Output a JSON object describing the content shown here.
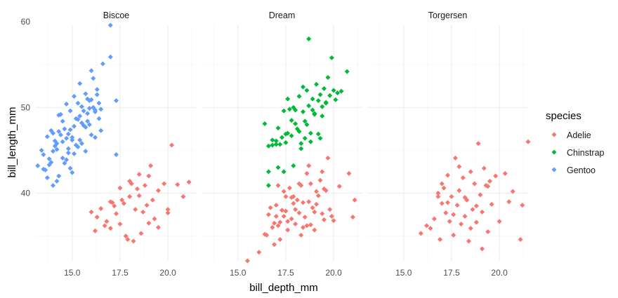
{
  "chart_data": {
    "type": "scatter",
    "xlabel": "bill_depth_mm",
    "ylabel": "bill_length_mm",
    "xlim": [
      13.1,
      21.5
    ],
    "ylim": [
      32.1,
      59.6
    ],
    "x_ticks": [
      15,
      17.5,
      20
    ],
    "x_tick_labels": [
      "15.0",
      "17.5",
      "20.0"
    ],
    "y_ticks": [
      40,
      50,
      60
    ],
    "y_tick_labels": [
      "40",
      "50",
      "60"
    ],
    "grid": true,
    "legend": {
      "title": "species",
      "placement": "right"
    },
    "colors": {
      "Adelie": "#F8766D",
      "Chinstrap": "#00BA38",
      "Gentoo": "#619CFF"
    },
    "facets": [
      {
        "label": "Biscoe",
        "series": [
          {
            "name": "Adelie",
            "x": [
              16.0,
              16.2,
              16.5,
              16.8,
              17.0,
              17.0,
              17.2,
              17.3,
              17.5,
              17.5,
              17.7,
              17.8,
              18.0,
              18.0,
              18.2,
              18.3,
              18.5,
              18.5,
              18.7,
              18.8,
              19.0,
              19.0,
              19.2,
              19.3,
              19.5,
              19.5,
              19.8,
              20.0,
              20.0,
              20.2,
              20.5,
              20.8,
              21.1,
              16.3,
              16.7,
              17.1,
              17.6,
              18.1,
              18.4,
              18.9,
              19.1,
              17.9,
              18.6
            ],
            "y": [
              37.8,
              35.6,
              38.2,
              36.7,
              39.0,
              35.9,
              38.5,
              37.6,
              40.6,
              36.4,
              38.8,
              35.0,
              39.6,
              41.4,
              34.4,
              38.1,
              39.7,
              42.2,
              37.8,
              40.9,
              36.5,
              42.0,
              39.2,
              37.0,
              40.3,
              36.0,
              41.1,
              38.1,
              37.7,
              45.6,
              41.0,
              39.6,
              41.3,
              37.2,
              36.2,
              38.9,
              39.2,
              41.1,
              40.5,
              38.6,
              43.2,
              34.6,
              35.3
            ]
          },
          {
            "name": "Gentoo",
            "x": [
              13.2,
              13.4,
              13.5,
              13.6,
              13.7,
              13.8,
              13.9,
              14.0,
              14.1,
              14.2,
              14.3,
              14.4,
              14.5,
              14.6,
              14.7,
              14.8,
              14.9,
              15.0,
              15.1,
              15.2,
              15.3,
              15.4,
              15.5,
              15.6,
              15.7,
              15.8,
              15.9,
              16.0,
              16.1,
              16.2,
              16.3,
              16.4,
              16.5,
              16.6,
              17.0,
              17.0,
              17.3,
              17.3,
              13.5,
              13.7,
              13.9,
              14.1,
              14.3,
              14.5,
              14.7,
              14.9,
              15.1,
              15.3,
              15.5,
              15.7,
              15.9,
              16.1,
              16.3,
              16.5,
              13.8,
              14.0,
              14.2,
              14.4,
              14.6,
              14.8,
              15.0,
              15.2,
              15.4,
              15.6,
              15.8,
              16.0,
              16.2,
              16.4,
              14.3,
              14.5,
              14.7,
              14.9,
              15.1,
              15.3,
              15.5,
              15.7,
              15.9,
              14.0,
              14.2,
              14.8,
              15.0,
              15.4,
              15.8,
              16.0,
              16.2
            ],
            "y": [
              43.2,
              45.0,
              44.5,
              42.7,
              46.6,
              43.3,
              47.3,
              44.9,
              46.1,
              45.8,
              49.1,
              46.8,
              48.4,
              47.5,
              50.4,
              45.2,
              49.6,
              46.5,
              51.3,
              48.7,
              50.5,
              46.2,
              48.2,
              49.6,
              47.7,
              49.3,
              50.8,
              46.8,
              50.0,
              49.5,
              52.1,
              48.7,
              47.3,
              55.1,
              59.6,
              55.9,
              50.8,
              44.5,
              42.8,
              41.8,
              43.6,
              45.5,
              47.2,
              44.1,
              46.4,
              42.9,
              47.8,
              45.4,
              50.1,
              44.9,
              48.0,
              53.4,
              51.5,
              49.8,
              44.0,
              47.0,
              45.1,
              49.2,
              43.5,
              46.9,
              42.4,
              45.6,
              49.0,
              47.9,
              51.0,
              54.3,
              46.5,
              50.5,
              42.0,
              46.0,
              43.9,
              47.4,
              44.6,
              48.6,
              45.8,
              51.6,
              49.9,
              40.9,
              41.4,
              44.7,
              46.2,
              52.8,
              48.4,
              50.9,
              49.7
            ]
          }
        ]
      },
      {
        "label": "Dream",
        "series": [
          {
            "name": "Adelie",
            "x": [
              15.5,
              16.1,
              16.4,
              16.6,
              16.8,
              16.9,
              17.0,
              17.1,
              17.2,
              17.3,
              17.4,
              17.5,
              17.6,
              17.7,
              17.8,
              17.9,
              18.0,
              18.1,
              18.2,
              18.3,
              18.4,
              18.5,
              18.6,
              18.7,
              18.8,
              18.9,
              19.0,
              19.1,
              19.2,
              19.3,
              19.4,
              19.5,
              19.6,
              19.7,
              19.8,
              20.0,
              20.3,
              20.8,
              21.1,
              21.0,
              17.0,
              17.4,
              17.8,
              18.2,
              18.6,
              19.0,
              19.4,
              17.2,
              17.6,
              18.0,
              18.4,
              18.8,
              16.7,
              16.9,
              17.1,
              17.5,
              17.9,
              18.3,
              18.7,
              19.1,
              19.5,
              19.9,
              16.5
            ],
            "y": [
              32.1,
              33.1,
              35.2,
              37.5,
              36.0,
              34.0,
              38.6,
              36.2,
              36.6,
              38.0,
              37.3,
              39.6,
              35.7,
              40.6,
              37.0,
              38.8,
              36.4,
              39.2,
              37.7,
              40.9,
              36.0,
              37.2,
              42.3,
              39.0,
              41.1,
              38.3,
              35.7,
              40.2,
              39.7,
              41.5,
              37.6,
              36.9,
              40.3,
              44.1,
              38.1,
              36.8,
              40.8,
              42.3,
              39.2,
              37.2,
              37.3,
              40.2,
              39.5,
              41.1,
              36.2,
              37.8,
              42.5,
              34.6,
              36.7,
              38.1,
              38.9,
              36.3,
              38.3,
              36.5,
              40.9,
              37.9,
              39.6,
              35.1,
              43.2,
              38.7,
              40.5,
              37.3,
              35.1
            ]
          },
          {
            "name": "Chinstrap",
            "x": [
              16.4,
              16.6,
              16.8,
              17.0,
              17.1,
              17.3,
              17.4,
              17.5,
              17.6,
              17.7,
              17.8,
              17.9,
              18.0,
              18.1,
              18.2,
              18.3,
              18.4,
              18.5,
              18.6,
              18.7,
              18.8,
              18.9,
              19.0,
              19.1,
              19.2,
              19.3,
              19.4,
              19.5,
              19.6,
              19.7,
              19.8,
              19.9,
              20.0,
              20.2,
              20.7,
              18.7,
              16.6,
              17.4,
              17.9,
              18.3,
              18.8,
              19.3,
              19.6,
              20.1,
              16.6,
              17.5,
              17.0,
              17.8,
              18.2,
              18.6,
              19.0,
              19.4,
              17.2,
              17.6,
              18.0,
              18.4,
              18.9,
              19.2,
              20.4,
              17.1,
              18.5,
              16.8
            ],
            "y": [
              48.1,
              45.5,
              46.2,
              45.7,
              47.6,
              46.5,
              49.6,
              45.9,
              47.0,
              49.8,
              46.7,
              50.0,
              49.7,
              47.5,
              51.3,
              45.8,
              49.5,
              48.4,
              52.0,
              50.2,
              47.0,
              51.0,
              49.3,
              52.7,
              50.8,
              51.5,
              49.0,
              52.2,
              50.5,
              53.5,
              51.4,
              55.8,
              52.0,
              51.7,
              54.2,
              58.0,
              40.9,
              42.5,
              43.2,
              45.2,
              46.0,
              46.4,
              50.6,
              50.9,
              42.5,
              46.9,
              46.1,
              48.5,
              47.2,
              48.0,
              49.2,
              50.1,
              45.7,
              51.0,
              48.1,
              52.4,
              49.7,
              46.9,
              51.9,
              43.0,
              46.4,
              45.6
            ]
          }
        ]
      },
      {
        "label": "Torgersen",
        "series": [
          {
            "name": "Adelie",
            "x": [
              15.9,
              16.2,
              16.4,
              16.6,
              16.8,
              16.9,
              17.0,
              17.1,
              17.2,
              17.3,
              17.4,
              17.5,
              17.6,
              17.7,
              17.8,
              17.9,
              18.0,
              18.1,
              18.2,
              18.3,
              18.4,
              18.5,
              18.6,
              18.7,
              18.8,
              18.9,
              19.0,
              19.1,
              19.2,
              19.3,
              19.4,
              19.5,
              19.6,
              19.8,
              20.0,
              20.3,
              20.5,
              20.7,
              21.1,
              21.5,
              21.2,
              16.8,
              17.0,
              17.3,
              17.6,
              17.9,
              18.2,
              18.5,
              18.8,
              19.1,
              19.4
            ],
            "y": [
              35.3,
              36.2,
              35.9,
              37.0,
              39.6,
              34.6,
              38.8,
              40.6,
              37.7,
              42.1,
              36.7,
              39.6,
              35.1,
              44.1,
              38.6,
              40.3,
              36.4,
              41.8,
              37.3,
              39.2,
              34.4,
              42.5,
              38.1,
              41.1,
              36.6,
              45.8,
              39.8,
              37.8,
              42.9,
              40.9,
              35.5,
              41.4,
              38.7,
              42.0,
              36.7,
              42.3,
              39.0,
              40.2,
              34.6,
              46.0,
              38.6,
              40.0,
              41.1,
              38.9,
              37.5,
              43.1,
              39.5,
              35.9,
              38.5,
              33.5,
              40.8
            ]
          }
        ]
      }
    ]
  }
}
